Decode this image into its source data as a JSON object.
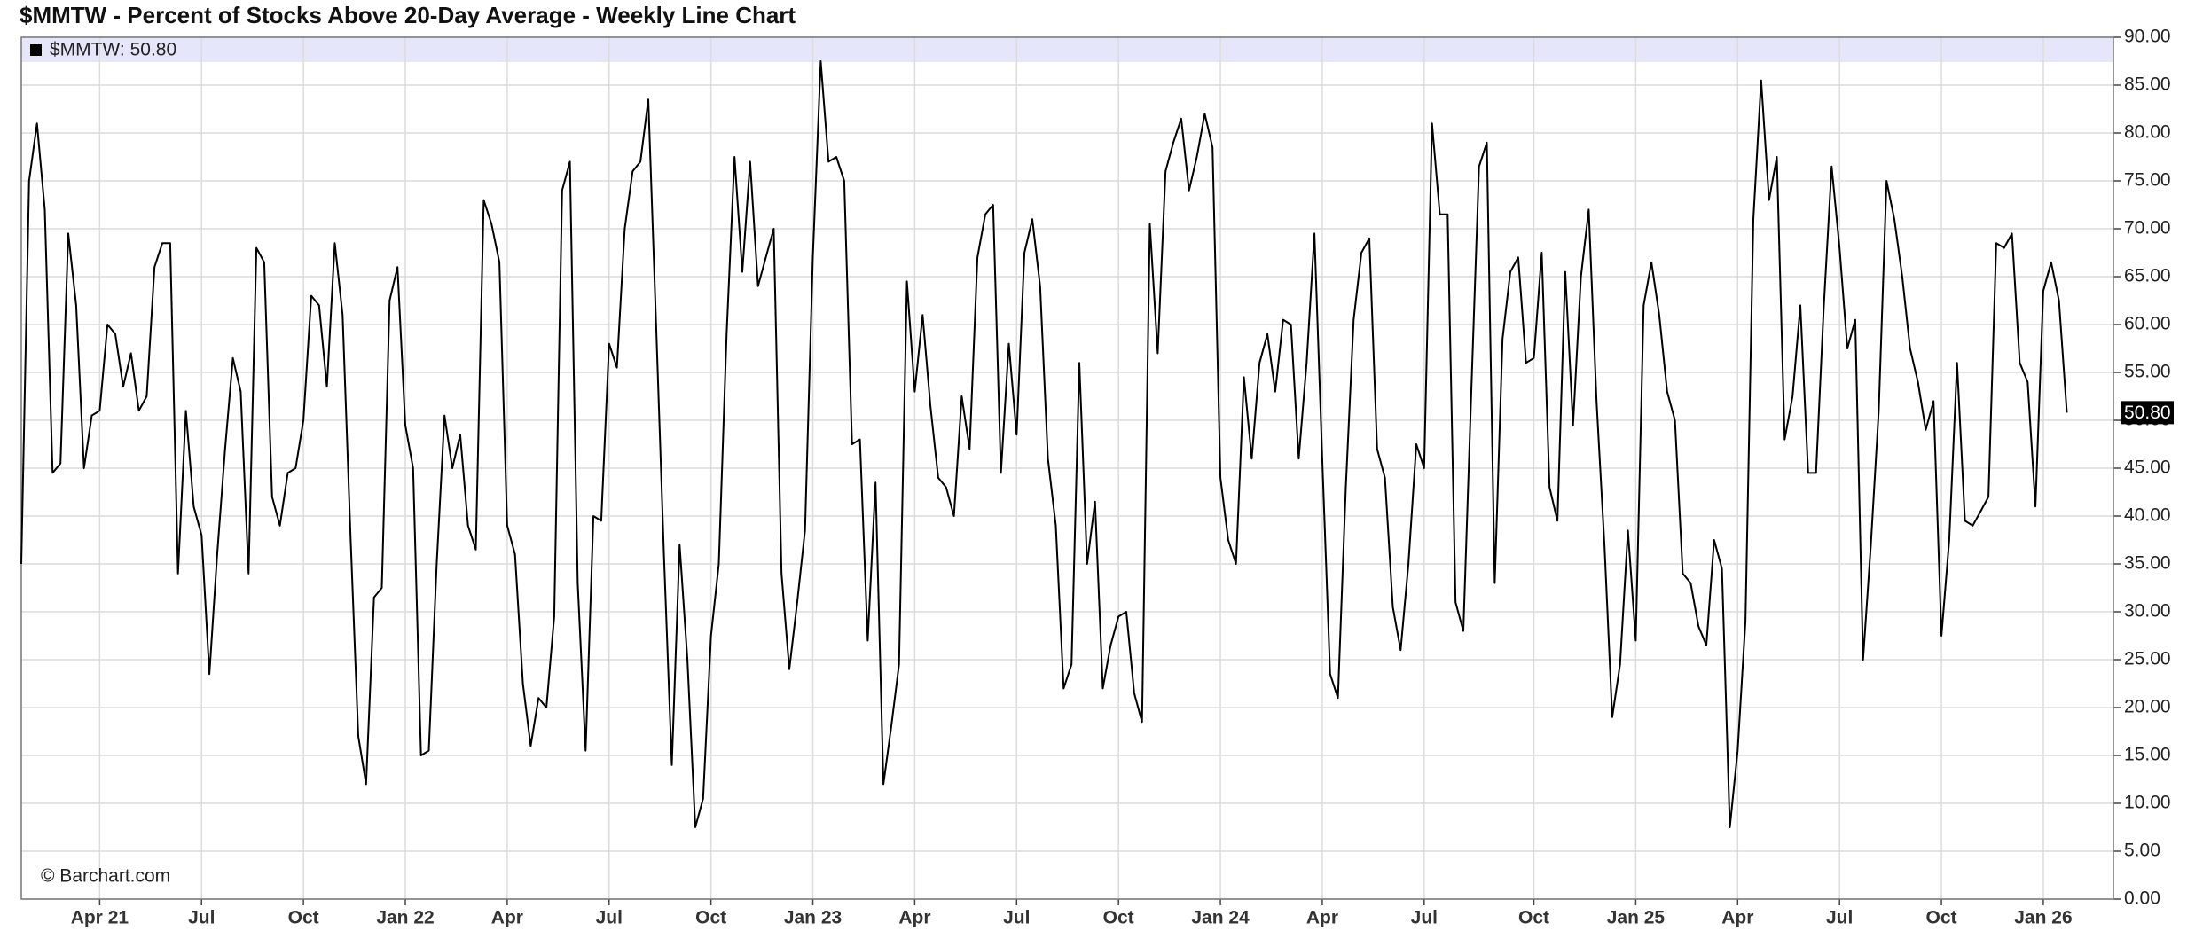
{
  "chart_data": {
    "type": "line",
    "title": "$MMTW - Percent of Stocks Above 20-Day Average - Weekly Line Chart",
    "legend": "$MMTW: 50.80",
    "credit": "© Barchart.com",
    "current_value": {
      "value": 50.8,
      "label": "50.80"
    },
    "ylim": [
      0,
      90
    ],
    "yticks": [
      {
        "value": 0,
        "label": "0.00"
      },
      {
        "value": 5,
        "label": "5.00"
      },
      {
        "value": 10,
        "label": "10.00"
      },
      {
        "value": 15,
        "label": "15.00"
      },
      {
        "value": 20,
        "label": "20.00"
      },
      {
        "value": 25,
        "label": "25.00"
      },
      {
        "value": 30,
        "label": "30.00"
      },
      {
        "value": 35,
        "label": "35.00"
      },
      {
        "value": 40,
        "label": "40.00"
      },
      {
        "value": 45,
        "label": "45.00"
      },
      {
        "value": 50,
        "label": "50.00"
      },
      {
        "value": 55,
        "label": "55.00"
      },
      {
        "value": 60,
        "label": "60.00"
      },
      {
        "value": 65,
        "label": "65.00"
      },
      {
        "value": 70,
        "label": "70.00"
      },
      {
        "value": 75,
        "label": "75.00"
      },
      {
        "value": 80,
        "label": "80.00"
      },
      {
        "value": 85,
        "label": "85.00"
      },
      {
        "value": 90,
        "label": "90.00"
      }
    ],
    "grid": true,
    "axis_side": "right",
    "band_color": "#e6e6fa",
    "categories": [
      null,
      null,
      null,
      null,
      null,
      null,
      null,
      null,
      null,
      null,
      "Apr 21",
      null,
      null,
      null,
      null,
      null,
      null,
      null,
      null,
      null,
      null,
      null,
      null,
      "Jul",
      null,
      null,
      null,
      null,
      null,
      null,
      null,
      null,
      null,
      null,
      null,
      null,
      "Oct",
      null,
      null,
      null,
      null,
      null,
      null,
      null,
      null,
      null,
      null,
      null,
      null,
      "Jan 22",
      null,
      null,
      null,
      null,
      null,
      null,
      null,
      null,
      null,
      null,
      null,
      null,
      "Apr",
      null,
      null,
      null,
      null,
      null,
      null,
      null,
      null,
      null,
      null,
      null,
      null,
      "Jul",
      null,
      null,
      null,
      null,
      null,
      null,
      null,
      null,
      null,
      null,
      null,
      null,
      "Oct",
      null,
      null,
      null,
      null,
      null,
      null,
      null,
      null,
      null,
      null,
      null,
      null,
      "Jan 23",
      null,
      null,
      null,
      null,
      null,
      null,
      null,
      null,
      null,
      null,
      null,
      null,
      "Apr",
      null,
      null,
      null,
      null,
      null,
      null,
      null,
      null,
      null,
      null,
      null,
      null,
      "Jul",
      null,
      null,
      null,
      null,
      null,
      null,
      null,
      null,
      null,
      null,
      null,
      null,
      "Oct",
      null,
      null,
      null,
      null,
      null,
      null,
      null,
      null,
      null,
      null,
      null,
      null,
      "Jan 24",
      null,
      null,
      null,
      null,
      null,
      null,
      null,
      null,
      null,
      null,
      null,
      null,
      "Apr",
      null,
      null,
      null,
      null,
      null,
      null,
      null,
      null,
      null,
      null,
      null,
      null,
      "Jul",
      null,
      null,
      null,
      null,
      null,
      null,
      null,
      null,
      null,
      null,
      null,
      null,
      null,
      "Oct",
      null,
      null,
      null,
      null,
      null,
      null,
      null,
      null,
      null,
      null,
      null,
      null,
      "Jan 25",
      null,
      null,
      null,
      null,
      null,
      null,
      null,
      null,
      null,
      null,
      null,
      null,
      "Apr",
      null,
      null,
      null,
      null,
      null,
      null,
      null,
      null,
      null,
      null,
      null,
      null,
      "Jul",
      null,
      null,
      null,
      null,
      null,
      null,
      null,
      null,
      null,
      null,
      null,
      null,
      "Oct",
      null,
      null,
      null,
      null,
      null,
      null,
      null,
      null,
      null,
      null,
      null,
      null,
      "Jan 26",
      null,
      null,
      null
    ],
    "series": [
      {
        "name": "$MMTW",
        "color": "#000000",
        "values": [
          35,
          75,
          81,
          72,
          44.5,
          45.5,
          69.5,
          62,
          45,
          50.5,
          51,
          60,
          59,
          53.5,
          57,
          51,
          52.5,
          66,
          68.5,
          68.5,
          34,
          51,
          41,
          38,
          23.5,
          36,
          47,
          56.5,
          53,
          34,
          68,
          66.5,
          42,
          39,
          44.5,
          45,
          50,
          63,
          62,
          53.5,
          68.5,
          61,
          38,
          17,
          12,
          31.5,
          32.5,
          62.5,
          66,
          49.5,
          45,
          15,
          15.5,
          35,
          50.5,
          45,
          48.5,
          39,
          36.5,
          73,
          70.5,
          66.5,
          39,
          36,
          22.5,
          16,
          21,
          20,
          29.5,
          74,
          77,
          33,
          15.5,
          40,
          39.5,
          58,
          55.5,
          70,
          76,
          77,
          83.5,
          60,
          36,
          14,
          37,
          25,
          7.5,
          10.5,
          27.5,
          35,
          59,
          77.5,
          65.5,
          77,
          64,
          67,
          70,
          34,
          24,
          31,
          38.5,
          67,
          87.5,
          77,
          77.5,
          75,
          47.5,
          48,
          27,
          43.5,
          12,
          18,
          24.5,
          64.5,
          53,
          61,
          51.5,
          44,
          43,
          40,
          52.5,
          47,
          67,
          71.5,
          72.5,
          44.5,
          58,
          48.5,
          67.5,
          71,
          64,
          46,
          39,
          22,
          24.5,
          56,
          35,
          41.5,
          22,
          26.5,
          29.5,
          30,
          21.5,
          18.5,
          70.5,
          57,
          76,
          79,
          81.5,
          74,
          77.5,
          82,
          78.5,
          44,
          37.5,
          35,
          54.5,
          46,
          56,
          59,
          53,
          60.5,
          60,
          46,
          56,
          69.5,
          46,
          23.5,
          21,
          43,
          60.5,
          67.5,
          69,
          47,
          44,
          30.5,
          26,
          35,
          47.5,
          45,
          81,
          71.5,
          71.5,
          31,
          28,
          52.5,
          76.5,
          79,
          33,
          58.5,
          65.5,
          67,
          56,
          56.5,
          67.5,
          43,
          39.5,
          65.5,
          49.5,
          65,
          72,
          52,
          37,
          19,
          24.5,
          38.5,
          27,
          62,
          66.5,
          61,
          53,
          50,
          34,
          33,
          28.5,
          26.5,
          37.5,
          34.5,
          7.5,
          15.5,
          29,
          71,
          85.5,
          73,
          77.5,
          48,
          52.5,
          62,
          44.5,
          44.5,
          62,
          76.5,
          68,
          57.5,
          60.5,
          25,
          37,
          51,
          75,
          71,
          65,
          57.5,
          54,
          49,
          52,
          27.5,
          37.5,
          56,
          39.5,
          39,
          40.5,
          42,
          68.5,
          68,
          69.5,
          56,
          54,
          41,
          63.5,
          66.5,
          62.5,
          50.8
        ]
      }
    ]
  }
}
